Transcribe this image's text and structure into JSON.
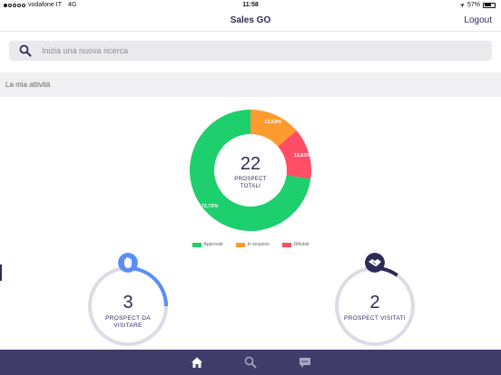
{
  "status": {
    "carrier": "vodafone IT",
    "network": "4G",
    "time": "11:58",
    "battery": "57%"
  },
  "nav": {
    "title": "Sales GO",
    "logout_label": "Logout"
  },
  "search": {
    "placeholder": "Inizia una nuova ricerca",
    "value": "",
    "icon": "search-icon"
  },
  "section": {
    "title": "La mia attività"
  },
  "chart_data": {
    "type": "pie",
    "subtype": "donut",
    "center_value": "22",
    "center_label_line1": "PROSPECT",
    "center_label_line2": "TOTALI",
    "slices": [
      {
        "name": "Approvati",
        "value": 72.72,
        "label": "72,72%",
        "color": "#1ecf6e"
      },
      {
        "name": "In sospeso",
        "value": 13.63,
        "label": "13,63%",
        "color": "#ff9a2e"
      },
      {
        "name": "Rifiutati",
        "value": 13.63,
        "label": "13,63%",
        "color": "#ff4d66"
      }
    ],
    "legend_position": "bottom"
  },
  "stats": [
    {
      "value": "3",
      "label": "PROSPECT DA VISITARE",
      "progress": 0.25,
      "color": "#5b8ef5",
      "icon": "hand-icon"
    },
    {
      "value": "2",
      "label": "PROSPECT VISITATI",
      "progress": 0.1,
      "color": "#2e2b57",
      "icon": "handshake-icon"
    }
  ],
  "tabbar": {
    "items": [
      {
        "name": "home",
        "icon": "home-icon",
        "active": true
      },
      {
        "name": "search",
        "icon": "search-icon",
        "active": false
      },
      {
        "name": "messages",
        "icon": "chat-icon",
        "active": false
      }
    ],
    "background": "#403d6a"
  }
}
